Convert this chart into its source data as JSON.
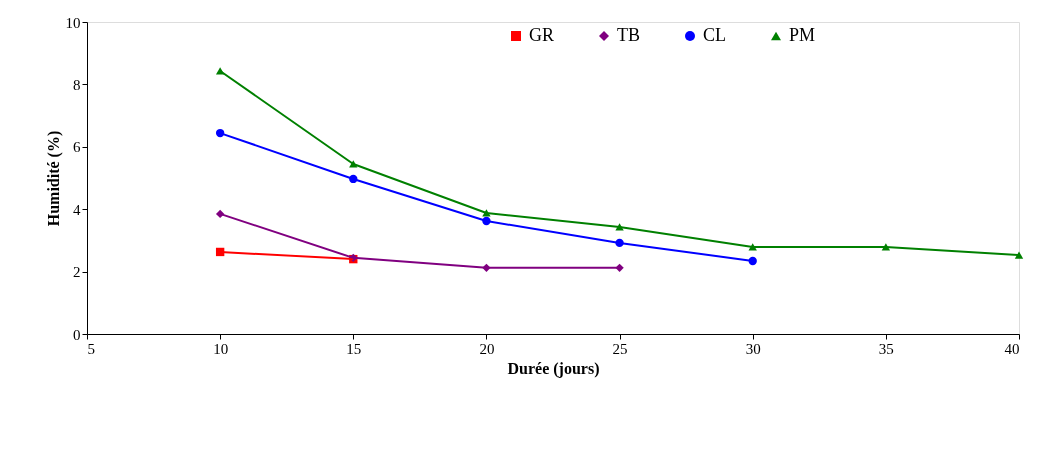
{
  "chart_data": {
    "type": "line",
    "xlabel": "Durée (jours)",
    "ylabel": "Humidité (%)",
    "xlim": [
      5,
      40
    ],
    "xticks": [
      5,
      10,
      15,
      20,
      25,
      30,
      35,
      40
    ],
    "ylim": [
      0,
      10
    ],
    "yticks": [
      0,
      2,
      4,
      6,
      8,
      10
    ],
    "grid": false,
    "legend": "top right",
    "line_style": "solid",
    "series": [
      {
        "name": "GR",
        "color": "#ff0000",
        "marker": "square",
        "x": [
          10,
          15
        ],
        "values": [
          2.63,
          2.4
        ]
      },
      {
        "name": "TB",
        "color": "#800080",
        "marker": "diamond",
        "x": [
          10,
          15,
          20,
          25
        ],
        "values": [
          3.85,
          2.44,
          2.12,
          2.12
        ]
      },
      {
        "name": "CL",
        "color": "#0000ff",
        "marker": "circle",
        "x": [
          10,
          15,
          20,
          25,
          30
        ],
        "values": [
          6.44,
          4.97,
          3.62,
          2.92,
          2.34
        ]
      },
      {
        "name": "PM",
        "color": "#008000",
        "marker": "triangle",
        "x": [
          10,
          15,
          20,
          25,
          30,
          35,
          40
        ],
        "values": [
          8.43,
          5.45,
          3.88,
          3.43,
          2.79,
          2.79,
          2.53
        ]
      }
    ]
  }
}
